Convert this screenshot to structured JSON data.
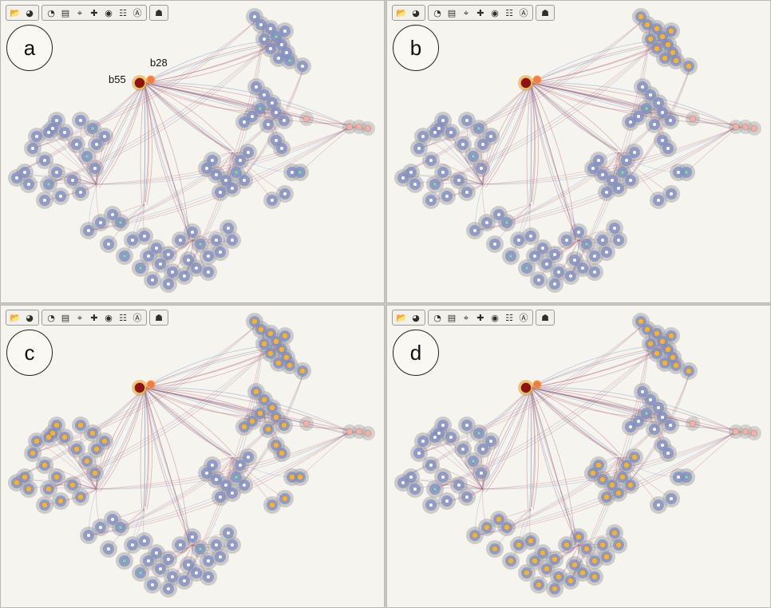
{
  "toolbar": {
    "groups": [
      [
        {
          "icon": "folder-open-icon",
          "glyph": "📂"
        },
        {
          "icon": "globe-icon",
          "glyph": "◕"
        }
      ],
      [
        {
          "icon": "pointer-icon",
          "glyph": "◔"
        },
        {
          "icon": "document-icon",
          "glyph": "▤"
        },
        {
          "icon": "target-icon",
          "glyph": "⌖"
        },
        {
          "icon": "pan-icon",
          "glyph": "✚"
        },
        {
          "icon": "palette-icon",
          "glyph": "◉"
        },
        {
          "icon": "grid-icon",
          "glyph": "☷"
        },
        {
          "icon": "ai-icon",
          "glyph": "Ⓐ"
        }
      ],
      [
        {
          "icon": "stamp-icon",
          "glyph": "☗"
        }
      ]
    ]
  },
  "panels": [
    {
      "label": "a",
      "highlight": []
    },
    {
      "label": "b",
      "highlight": [
        "top"
      ]
    },
    {
      "label": "c",
      "highlight": [
        "top",
        "left",
        "midTop",
        "right"
      ]
    },
    {
      "label": "d",
      "highlight": [
        "top",
        "bottom",
        "midRight"
      ]
    }
  ],
  "annotations": {
    "b55": "b55",
    "b28": "b28"
  },
  "colors": {
    "halo": "#a9a9aa",
    "blob": "#7d8cc6",
    "edgeRed": "#b24a5c",
    "edgeBlue": "#5d86c2",
    "nodeWhite": "#f4f4f6",
    "highlight": "#f3b23a",
    "rootDark": "#8e1414",
    "rootOrange": "#ef7d4a",
    "pink": "#f2b0a8"
  }
}
